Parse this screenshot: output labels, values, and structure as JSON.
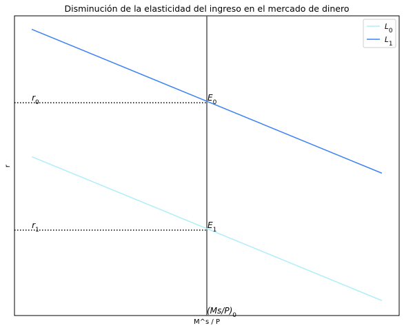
{
  "chart_data": {
    "type": "line",
    "title": "Disminución de la elasticidad del ingreso en el mercado de dinero",
    "xlabel": "M^s / P",
    "ylabel": "r",
    "xlim": [
      0,
      10
    ],
    "ylim": [
      0,
      10
    ],
    "grid": false,
    "legend": {
      "placement": "top-right",
      "entries": [
        "L0",
        "L1"
      ]
    },
    "series": [
      {
        "name": "L0",
        "color": "#aeeef8",
        "x": [
          0.45,
          9.55
        ],
        "y": [
          5.3,
          0.5
        ]
      },
      {
        "name": "L1",
        "color": "#3b82f6",
        "x": [
          0.45,
          9.55
        ],
        "y": [
          9.55,
          4.75
        ]
      }
    ],
    "vertical_line": {
      "x": 5.0,
      "label": "(Ms/P)0",
      "color": "#555555"
    },
    "horizontal_guides": [
      {
        "y": 7.1,
        "label": "r0",
        "point_label": "E0"
      },
      {
        "y": 2.85,
        "label": "r1",
        "point_label": "E1"
      }
    ]
  }
}
